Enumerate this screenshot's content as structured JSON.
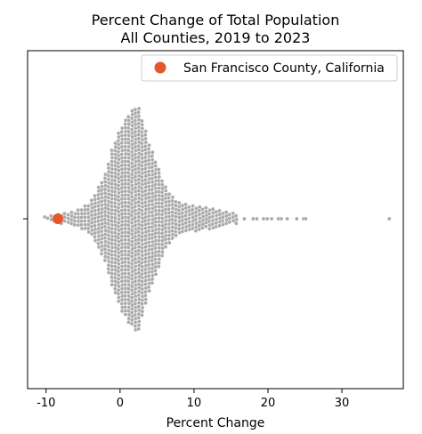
{
  "chart_data": {
    "type": "scatter",
    "subtype": "swarm",
    "title": [
      "Percent Change of Total Population",
      "All Counties, 2019 to 2023"
    ],
    "xlabel": "Percent Change",
    "ylabel": "",
    "xlim": [
      -12.5,
      38.3
    ],
    "xticks": [
      -10,
      0,
      10,
      20,
      30
    ],
    "xtick_labels": [
      "-10",
      "0",
      "10",
      "20",
      "30"
    ],
    "grid": false,
    "legend": {
      "placement": "top-right",
      "entries": [
        "San Francisco County, California"
      ]
    },
    "highlight": {
      "name": "San Francisco County, California",
      "x": -8.4,
      "color": "#e4572e"
    },
    "distribution": {
      "color": "#aaaaaa",
      "approx_count": 3100,
      "min": -10.2,
      "max": 36.4,
      "mode": 2.2,
      "outliers": [
        16.8,
        18.0,
        18.5,
        19.4,
        19.9,
        20.5,
        21.4,
        21.8,
        22.6,
        23.9,
        24.8,
        25.1,
        36.4
      ]
    }
  }
}
